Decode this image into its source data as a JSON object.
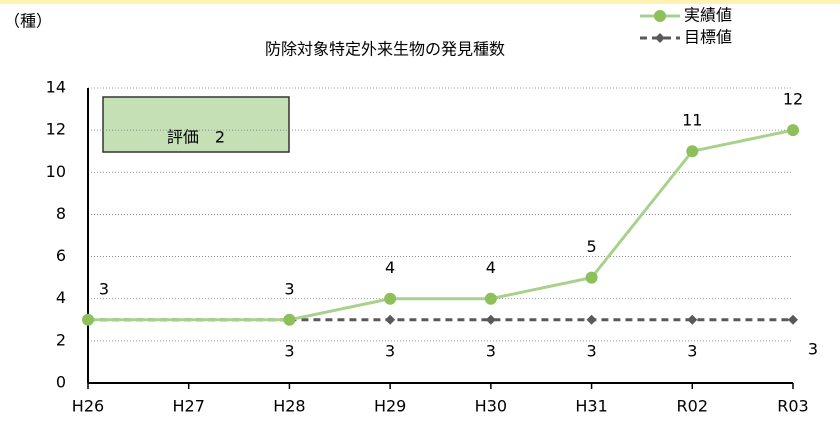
{
  "chart_data": {
    "type": "line",
    "title": "防除対象特定外来生物の発見種数",
    "y_unit": "（種）",
    "annotation": "評価　2",
    "categories": [
      "H26",
      "H27",
      "H28",
      "H29",
      "H30",
      "H31",
      "R02",
      "R03"
    ],
    "series": [
      {
        "name": "実績値",
        "color": "#8dc05a",
        "line_color": "#a9d18e",
        "marker": "circle",
        "label_position": "above",
        "values": [
          3,
          null,
          3,
          4,
          4,
          5,
          11,
          12
        ]
      },
      {
        "name": "目標値",
        "color": "#595959",
        "marker": "diamond",
        "dashed": true,
        "label_position": "below",
        "values": [
          3,
          null,
          3,
          3,
          3,
          3,
          3,
          3
        ],
        "value_labels": [
          null,
          null,
          "3",
          "3",
          "3",
          "3",
          "3",
          "3"
        ]
      }
    ],
    "ylim": [
      0,
      14
    ],
    "yticks": [
      0,
      2,
      4,
      6,
      8,
      10,
      12,
      14
    ],
    "grid": true,
    "legend": "top-right"
  }
}
